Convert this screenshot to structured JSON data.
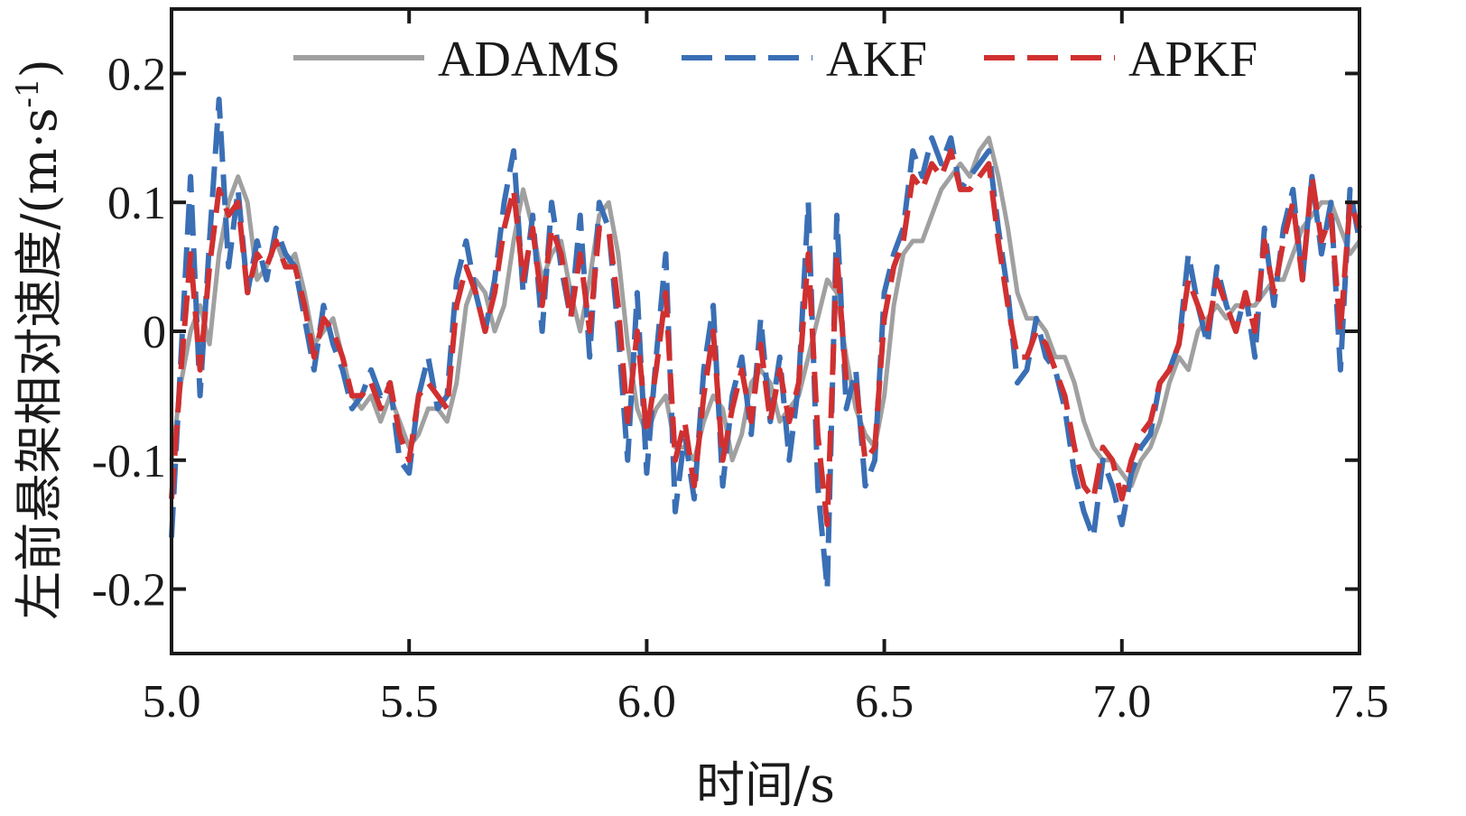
{
  "chart_data": {
    "type": "line",
    "title": "",
    "xlabel": "时间/s",
    "ylabel_main": "左前悬架相对速度/(m·s",
    "ylabel_sup": "-1",
    "ylabel_close": ")",
    "xlim": [
      5.0,
      7.5
    ],
    "ylim": [
      -0.25,
      0.25
    ],
    "xticks": [
      5.0,
      5.5,
      6.0,
      6.5,
      7.0,
      7.5
    ],
    "xtick_labels": [
      "5.0",
      "5.5",
      "6.0",
      "6.5",
      "7.0",
      "7.5"
    ],
    "yticks": [
      0.2,
      0.1,
      0,
      -0.1,
      -0.2
    ],
    "ytick_labels": [
      "0.2",
      "0.1",
      "0",
      "-0.1",
      "-0.2"
    ],
    "grid": false,
    "legend_position": "top",
    "series": [
      {
        "name": "ADAMS",
        "color": "#a0a0a0",
        "style": "solid",
        "x": [
          5.0,
          5.02,
          5.04,
          5.06,
          5.08,
          5.1,
          5.12,
          5.14,
          5.16,
          5.18,
          5.2,
          5.22,
          5.24,
          5.26,
          5.28,
          5.3,
          5.32,
          5.34,
          5.36,
          5.38,
          5.4,
          5.42,
          5.44,
          5.46,
          5.48,
          5.5,
          5.52,
          5.54,
          5.56,
          5.58,
          5.6,
          5.62,
          5.64,
          5.66,
          5.68,
          5.7,
          5.72,
          5.74,
          5.76,
          5.78,
          5.8,
          5.82,
          5.84,
          5.86,
          5.88,
          5.9,
          5.92,
          5.94,
          5.96,
          5.98,
          6.0,
          6.02,
          6.04,
          6.06,
          6.08,
          6.1,
          6.12,
          6.14,
          6.16,
          6.18,
          6.2,
          6.22,
          6.24,
          6.26,
          6.28,
          6.3,
          6.32,
          6.34,
          6.36,
          6.38,
          6.4,
          6.42,
          6.44,
          6.46,
          6.48,
          6.5,
          6.52,
          6.54,
          6.56,
          6.58,
          6.6,
          6.62,
          6.64,
          6.66,
          6.68,
          6.7,
          6.72,
          6.74,
          6.76,
          6.78,
          6.8,
          6.82,
          6.84,
          6.86,
          6.88,
          6.9,
          6.92,
          6.94,
          6.96,
          6.98,
          7.0,
          7.02,
          7.04,
          7.06,
          7.08,
          7.1,
          7.12,
          7.14,
          7.16,
          7.18,
          7.2,
          7.22,
          7.24,
          7.26,
          7.28,
          7.3,
          7.32,
          7.34,
          7.36,
          7.38,
          7.4,
          7.42,
          7.44,
          7.46,
          7.48,
          7.5
        ],
        "values": [
          -0.1,
          -0.04,
          0.0,
          0.02,
          -0.01,
          0.06,
          0.1,
          0.12,
          0.1,
          0.04,
          0.05,
          0.07,
          0.05,
          0.06,
          0.03,
          -0.01,
          0.0,
          0.01,
          -0.02,
          -0.05,
          -0.06,
          -0.05,
          -0.07,
          -0.05,
          -0.07,
          -0.09,
          -0.08,
          -0.06,
          -0.06,
          -0.07,
          -0.04,
          0.02,
          0.04,
          0.03,
          0.0,
          0.02,
          0.07,
          0.11,
          0.08,
          0.04,
          0.06,
          0.07,
          0.03,
          0.0,
          0.04,
          0.09,
          0.1,
          0.06,
          -0.01,
          -0.06,
          -0.08,
          -0.06,
          -0.05,
          -0.09,
          -0.09,
          -0.1,
          -0.07,
          -0.05,
          -0.06,
          -0.1,
          -0.08,
          -0.04,
          -0.03,
          -0.04,
          -0.07,
          -0.06,
          -0.05,
          -0.02,
          0.01,
          0.04,
          0.03,
          -0.02,
          -0.06,
          -0.08,
          -0.09,
          -0.05,
          0.02,
          0.06,
          0.07,
          0.07,
          0.09,
          0.11,
          0.12,
          0.13,
          0.12,
          0.14,
          0.15,
          0.12,
          0.08,
          0.03,
          0.01,
          0.01,
          0.0,
          -0.02,
          -0.02,
          -0.04,
          -0.07,
          -0.09,
          -0.1,
          -0.1,
          -0.11,
          -0.12,
          -0.1,
          -0.09,
          -0.07,
          -0.04,
          -0.02,
          -0.03,
          0.0,
          0.01,
          0.02,
          0.01,
          0.02,
          0.02,
          0.02,
          0.03,
          0.04,
          0.04,
          0.06,
          0.08,
          0.09,
          0.1,
          0.1,
          0.08,
          0.06,
          0.07
        ]
      },
      {
        "name": "AKF",
        "color": "#3a6fb5",
        "style": "dashed",
        "x": [
          5.0,
          5.02,
          5.04,
          5.06,
          5.08,
          5.1,
          5.12,
          5.14,
          5.16,
          5.18,
          5.2,
          5.22,
          5.24,
          5.26,
          5.28,
          5.3,
          5.32,
          5.34,
          5.36,
          5.38,
          5.4,
          5.42,
          5.44,
          5.46,
          5.48,
          5.5,
          5.52,
          5.54,
          5.56,
          5.58,
          5.6,
          5.62,
          5.64,
          5.66,
          5.68,
          5.7,
          5.72,
          5.74,
          5.76,
          5.78,
          5.8,
          5.82,
          5.84,
          5.86,
          5.88,
          5.9,
          5.92,
          5.94,
          5.96,
          5.98,
          6.0,
          6.02,
          6.04,
          6.06,
          6.08,
          6.1,
          6.12,
          6.14,
          6.16,
          6.18,
          6.2,
          6.22,
          6.24,
          6.26,
          6.28,
          6.3,
          6.32,
          6.34,
          6.36,
          6.38,
          6.4,
          6.42,
          6.44,
          6.46,
          6.48,
          6.5,
          6.52,
          6.54,
          6.56,
          6.58,
          6.6,
          6.62,
          6.64,
          6.66,
          6.68,
          6.7,
          6.72,
          6.74,
          6.76,
          6.78,
          6.8,
          6.82,
          6.84,
          6.86,
          6.88,
          6.9,
          6.92,
          6.94,
          6.96,
          6.98,
          7.0,
          7.02,
          7.04,
          7.06,
          7.08,
          7.1,
          7.12,
          7.14,
          7.16,
          7.18,
          7.2,
          7.22,
          7.24,
          7.26,
          7.28,
          7.3,
          7.32,
          7.34,
          7.36,
          7.38,
          7.4,
          7.42,
          7.44,
          7.46,
          7.48,
          7.5
        ],
        "values": [
          -0.16,
          -0.02,
          0.12,
          -0.05,
          0.07,
          0.18,
          0.05,
          0.11,
          0.03,
          0.07,
          0.04,
          0.08,
          0.06,
          0.05,
          0.01,
          -0.03,
          0.02,
          -0.01,
          -0.03,
          -0.06,
          -0.05,
          -0.03,
          -0.05,
          -0.04,
          -0.1,
          -0.11,
          -0.05,
          -0.02,
          -0.06,
          -0.05,
          0.04,
          0.07,
          0.03,
          0.0,
          0.04,
          0.1,
          0.14,
          0.03,
          0.09,
          0.0,
          0.1,
          0.05,
          0.01,
          0.09,
          -0.02,
          0.1,
          0.08,
          0.0,
          -0.1,
          0.03,
          -0.11,
          -0.02,
          0.06,
          -0.14,
          -0.08,
          -0.13,
          -0.03,
          0.02,
          -0.12,
          -0.05,
          -0.02,
          -0.08,
          0.01,
          -0.07,
          -0.02,
          -0.1,
          -0.04,
          0.1,
          -0.12,
          -0.2,
          0.09,
          -0.06,
          -0.03,
          -0.12,
          -0.1,
          0.03,
          0.06,
          0.08,
          0.14,
          0.12,
          0.15,
          0.13,
          0.15,
          0.11,
          0.12,
          0.13,
          0.14,
          0.08,
          0.03,
          -0.04,
          -0.03,
          0.01,
          -0.02,
          -0.03,
          -0.06,
          -0.11,
          -0.14,
          -0.16,
          -0.1,
          -0.12,
          -0.15,
          -0.11,
          -0.09,
          -0.08,
          -0.04,
          -0.03,
          -0.01,
          0.06,
          0.02,
          -0.01,
          0.05,
          0.02,
          0.0,
          0.03,
          -0.02,
          0.08,
          0.02,
          0.08,
          0.11,
          0.04,
          0.12,
          0.06,
          0.1,
          -0.03,
          0.11,
          0.07
        ]
      },
      {
        "name": "APKF",
        "color": "#d03030",
        "style": "dashed",
        "x": [
          5.0,
          5.02,
          5.04,
          5.06,
          5.08,
          5.1,
          5.12,
          5.14,
          5.16,
          5.18,
          5.2,
          5.22,
          5.24,
          5.26,
          5.28,
          5.3,
          5.32,
          5.34,
          5.36,
          5.38,
          5.4,
          5.42,
          5.44,
          5.46,
          5.48,
          5.5,
          5.52,
          5.54,
          5.56,
          5.58,
          5.6,
          5.62,
          5.64,
          5.66,
          5.68,
          5.7,
          5.72,
          5.74,
          5.76,
          5.78,
          5.8,
          5.82,
          5.84,
          5.86,
          5.88,
          5.9,
          5.92,
          5.94,
          5.96,
          5.98,
          6.0,
          6.02,
          6.04,
          6.06,
          6.08,
          6.1,
          6.12,
          6.14,
          6.16,
          6.18,
          6.2,
          6.22,
          6.24,
          6.26,
          6.28,
          6.3,
          6.32,
          6.34,
          6.36,
          6.38,
          6.4,
          6.42,
          6.44,
          6.46,
          6.48,
          6.5,
          6.52,
          6.54,
          6.56,
          6.58,
          6.6,
          6.62,
          6.64,
          6.66,
          6.68,
          6.7,
          6.72,
          6.74,
          6.76,
          6.78,
          6.8,
          6.82,
          6.84,
          6.86,
          6.88,
          6.9,
          6.92,
          6.94,
          6.96,
          6.98,
          7.0,
          7.02,
          7.04,
          7.06,
          7.08,
          7.1,
          7.12,
          7.14,
          7.16,
          7.18,
          7.2,
          7.22,
          7.24,
          7.26,
          7.28,
          7.3,
          7.32,
          7.34,
          7.36,
          7.38,
          7.4,
          7.42,
          7.44,
          7.46,
          7.48,
          7.5
        ],
        "values": [
          -0.13,
          -0.03,
          0.06,
          -0.03,
          0.05,
          0.11,
          0.09,
          0.1,
          0.03,
          0.06,
          0.05,
          0.07,
          0.05,
          0.05,
          0.02,
          -0.02,
          0.01,
          0.0,
          -0.02,
          -0.05,
          -0.05,
          -0.04,
          -0.06,
          -0.04,
          -0.08,
          -0.1,
          -0.05,
          -0.04,
          -0.05,
          -0.06,
          0.02,
          0.05,
          0.03,
          0.0,
          0.03,
          0.08,
          0.11,
          0.04,
          0.08,
          0.02,
          0.08,
          0.06,
          0.01,
          0.06,
          0.0,
          0.08,
          0.08,
          0.02,
          -0.07,
          0.0,
          -0.08,
          -0.03,
          0.03,
          -0.1,
          -0.07,
          -0.12,
          -0.05,
          0.0,
          -0.1,
          -0.06,
          -0.03,
          -0.07,
          -0.01,
          -0.07,
          -0.03,
          -0.07,
          -0.04,
          0.06,
          -0.08,
          -0.15,
          0.06,
          -0.04,
          -0.04,
          -0.1,
          -0.09,
          0.01,
          0.05,
          0.07,
          0.12,
          0.11,
          0.13,
          0.12,
          0.14,
          0.11,
          0.11,
          0.12,
          0.13,
          0.07,
          0.02,
          -0.02,
          -0.02,
          0.0,
          -0.01,
          -0.03,
          -0.05,
          -0.09,
          -0.12,
          -0.13,
          -0.09,
          -0.1,
          -0.13,
          -0.1,
          -0.08,
          -0.07,
          -0.04,
          -0.03,
          -0.01,
          0.04,
          0.02,
          0.0,
          0.04,
          0.02,
          0.0,
          0.03,
          0.0,
          0.07,
          0.03,
          0.07,
          0.1,
          0.04,
          0.12,
          0.07,
          0.09,
          0.0,
          0.1,
          0.08
        ]
      }
    ]
  }
}
